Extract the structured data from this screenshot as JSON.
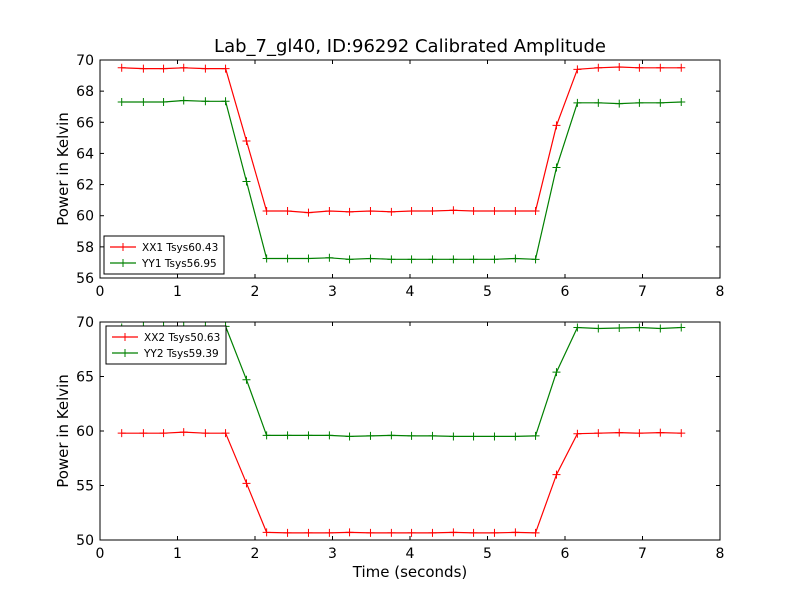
{
  "figure": {
    "title": "Lab_7_gl40, ID:96292 Calibrated Amplitude"
  },
  "chart_data": [
    {
      "type": "line",
      "title": "Lab_7_gl40, ID:96292 Calibrated Amplitude",
      "xlabel": "",
      "ylabel": "Power in Kelvin",
      "xlim": [
        0,
        8
      ],
      "ylim": [
        56,
        70
      ],
      "xticks": [
        0,
        1,
        2,
        3,
        4,
        5,
        6,
        7,
        8
      ],
      "yticks": [
        56,
        58,
        60,
        62,
        64,
        66,
        68,
        70
      ],
      "grid": false,
      "legend_position": "lower-left",
      "x": [
        0.28,
        0.56,
        0.82,
        1.08,
        1.36,
        1.62,
        1.89,
        2.15,
        2.42,
        2.69,
        2.96,
        3.22,
        3.49,
        3.76,
        4.02,
        4.29,
        4.56,
        4.82,
        5.09,
        5.36,
        5.62,
        5.89,
        6.16,
        6.43,
        6.7,
        6.96,
        7.23,
        7.5
      ],
      "series": [
        {
          "name": "XX1 Tsys60.43",
          "color": "#ff0000",
          "marker": "+",
          "values": [
            69.5,
            69.45,
            69.45,
            69.5,
            69.45,
            69.45,
            64.8,
            60.3,
            60.3,
            60.2,
            60.3,
            60.25,
            60.3,
            60.25,
            60.3,
            60.3,
            60.35,
            60.3,
            60.3,
            60.3,
            60.3,
            65.8,
            69.4,
            69.5,
            69.55,
            69.5,
            69.5,
            69.5
          ]
        },
        {
          "name": "YY1 Tsys56.95",
          "color": "#008000",
          "marker": "+",
          "values": [
            67.3,
            67.3,
            67.3,
            67.4,
            67.35,
            67.35,
            62.2,
            57.25,
            57.25,
            57.25,
            57.3,
            57.2,
            57.25,
            57.2,
            57.2,
            57.2,
            57.2,
            57.2,
            57.2,
            57.25,
            57.2,
            63.1,
            67.25,
            67.25,
            67.2,
            67.25,
            67.25,
            67.3
          ]
        }
      ]
    },
    {
      "type": "line",
      "title": "",
      "xlabel": "Time (seconds)",
      "ylabel": "Power in Kelvin",
      "xlim": [
        0,
        8
      ],
      "ylim": [
        50,
        70
      ],
      "xticks": [
        0,
        1,
        2,
        3,
        4,
        5,
        6,
        7,
        8
      ],
      "yticks": [
        50,
        55,
        60,
        65,
        70
      ],
      "grid": false,
      "legend_position": "upper-left",
      "x": [
        0.28,
        0.56,
        0.82,
        1.08,
        1.36,
        1.62,
        1.89,
        2.15,
        2.42,
        2.69,
        2.96,
        3.22,
        3.49,
        3.76,
        4.02,
        4.29,
        4.56,
        4.82,
        5.09,
        5.36,
        5.62,
        5.89,
        6.16,
        6.43,
        6.7,
        6.96,
        7.23,
        7.5
      ],
      "series": [
        {
          "name": "XX2 Tsys50.63",
          "color": "#ff0000",
          "marker": "+",
          "values": [
            59.8,
            59.8,
            59.8,
            59.9,
            59.8,
            59.8,
            55.2,
            50.7,
            50.65,
            50.65,
            50.65,
            50.7,
            50.65,
            50.65,
            50.65,
            50.65,
            50.7,
            50.65,
            50.65,
            50.7,
            50.65,
            56.0,
            59.75,
            59.8,
            59.85,
            59.8,
            59.85,
            59.8
          ]
        },
        {
          "name": "YY2 Tsys59.39",
          "color": "#008000",
          "marker": "+",
          "values": [
            69.5,
            69.6,
            69.6,
            69.6,
            69.6,
            69.6,
            64.7,
            59.6,
            59.6,
            59.6,
            59.6,
            59.5,
            59.55,
            59.6,
            59.55,
            59.55,
            59.5,
            59.5,
            59.5,
            59.5,
            59.55,
            65.4,
            69.5,
            69.4,
            69.45,
            69.5,
            69.4,
            69.5
          ]
        }
      ]
    }
  ]
}
